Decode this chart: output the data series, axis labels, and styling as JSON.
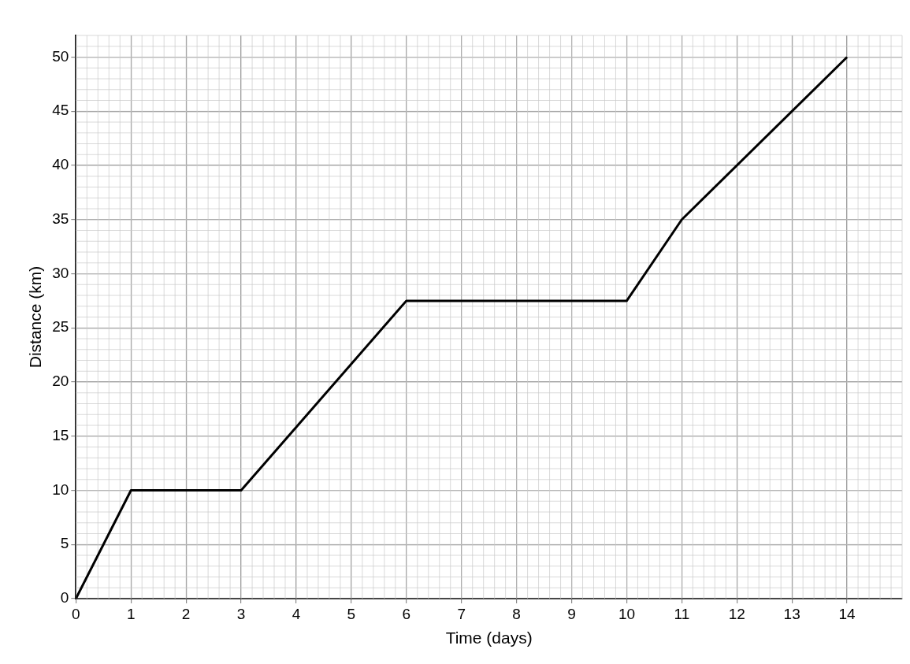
{
  "chart_data": {
    "type": "line",
    "xlabel": "Time (days)",
    "ylabel": "Distance (km)",
    "x": [
      0,
      1,
      3,
      6,
      10,
      11,
      14
    ],
    "series": [
      {
        "color": "#000000",
        "values": [
          0,
          10,
          10,
          27.5,
          27.5,
          35,
          50
        ]
      }
    ],
    "xlim": [
      0,
      15
    ],
    "ylim": [
      0,
      52
    ],
    "xticks": [
      0,
      1,
      2,
      3,
      4,
      5,
      6,
      7,
      8,
      9,
      10,
      11,
      12,
      13,
      14
    ],
    "yticks": [
      0,
      5,
      10,
      15,
      20,
      25,
      30,
      35,
      40,
      45,
      50
    ],
    "grid": true,
    "marker": "none",
    "line_style": "solid",
    "legend": false
  }
}
